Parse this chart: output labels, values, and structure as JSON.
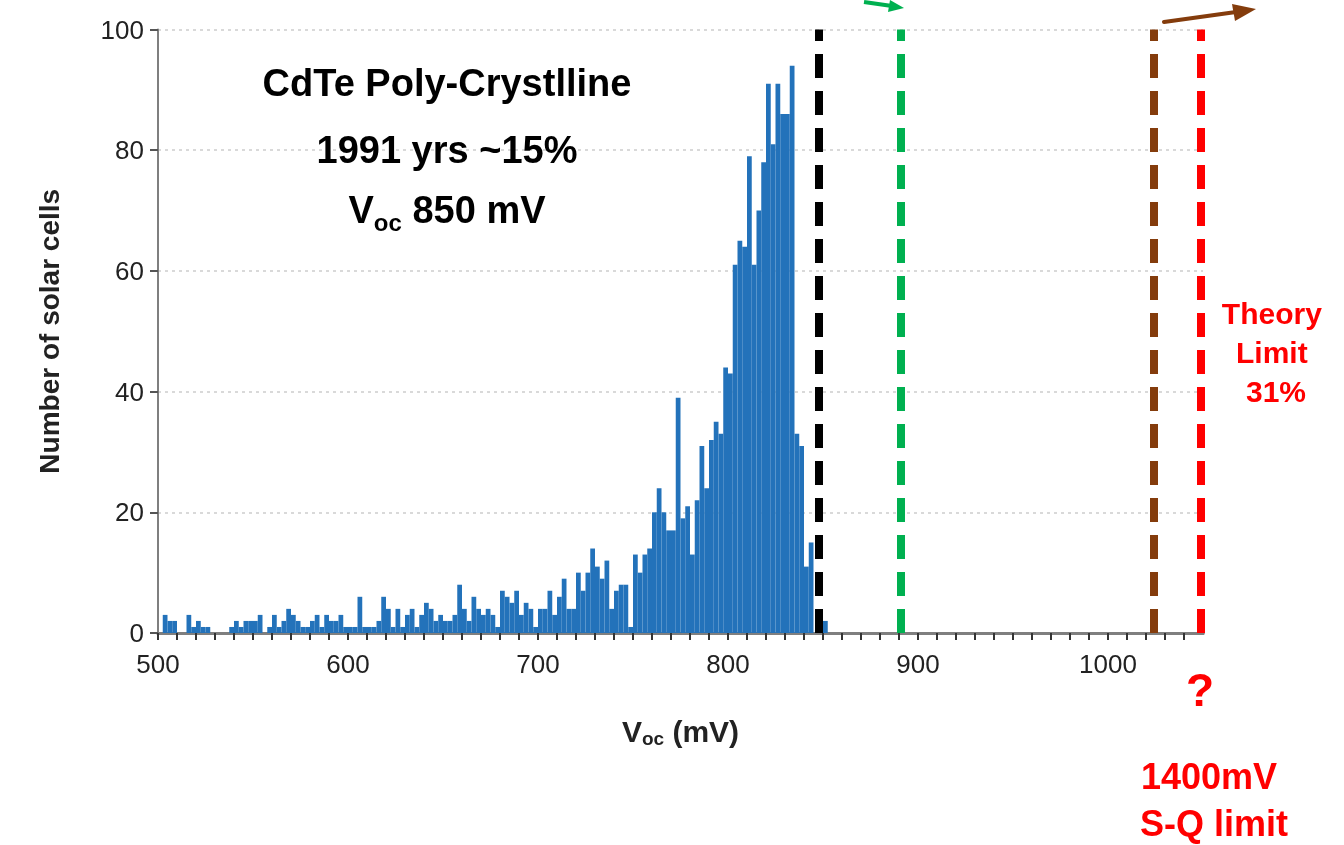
{
  "chart_data": {
    "type": "histogram",
    "xlabel": "V$_{oc}$ (mV)",
    "ylabel": "Number of solar cells",
    "bins": [
      500,
      502.5,
      505,
      507.5,
      510,
      512.5,
      515,
      517.5,
      520,
      522.5,
      525,
      527.5,
      530,
      532.5,
      535,
      537.5,
      540,
      542.5,
      545,
      547.5,
      550,
      552.5,
      555,
      557.5,
      560,
      562.5,
      565,
      567.5,
      570,
      572.5,
      575,
      577.5,
      580,
      582.5,
      585,
      587.5,
      590,
      592.5,
      595,
      597.5,
      600,
      602.5,
      605,
      607.5,
      610,
      612.5,
      615,
      617.5,
      620,
      622.5,
      625,
      627.5,
      630,
      632.5,
      635,
      637.5,
      640,
      642.5,
      645,
      647.5,
      650,
      652.5,
      655,
      657.5,
      660,
      662.5,
      665,
      667.5,
      670,
      672.5,
      675,
      677.5,
      680,
      682.5,
      685,
      687.5,
      690,
      692.5,
      695,
      697.5,
      700,
      702.5,
      705,
      707.5,
      710,
      712.5,
      715,
      717.5,
      720,
      722.5,
      725,
      727.5,
      730,
      732.5,
      735,
      737.5,
      740,
      742.5,
      745,
      747.5,
      750,
      752.5,
      755,
      757.5,
      760,
      762.5,
      765,
      767.5,
      770,
      772.5,
      775,
      777.5,
      780,
      782.5,
      785,
      787.5,
      790,
      792.5,
      795,
      797.5,
      800,
      802.5,
      805,
      807.5,
      810,
      812.5,
      815,
      817.5,
      820,
      822.5,
      825,
      827.5,
      830,
      832.5,
      835,
      837.5,
      840,
      842.5,
      845,
      847.5,
      850,
      852.5
    ],
    "values": [
      0,
      3,
      2,
      2,
      0,
      0,
      3,
      1,
      2,
      1,
      1,
      0,
      0,
      0,
      0,
      1,
      2,
      1,
      2,
      2,
      2,
      3,
      0,
      1,
      3,
      1,
      2,
      4,
      3,
      2,
      1,
      1,
      2,
      3,
      1,
      3,
      2,
      2,
      3,
      1,
      1,
      1,
      6,
      1,
      1,
      1,
      2,
      6,
      4,
      1,
      4,
      1,
      3,
      4,
      1,
      3,
      5,
      4,
      2,
      3,
      2,
      2,
      3,
      8,
      4,
      2,
      6,
      4,
      3,
      4,
      3,
      1,
      7,
      6,
      5,
      7,
      3,
      5,
      4,
      1,
      4,
      4,
      7,
      3,
      6,
      9,
      4,
      4,
      10,
      7,
      10,
      14,
      11,
      9,
      12,
      4,
      7,
      8,
      8,
      1,
      13,
      10,
      13,
      14,
      20,
      24,
      20,
      17,
      17,
      39,
      19,
      21,
      13,
      22,
      31,
      24,
      32,
      35,
      33,
      44,
      43,
      61,
      65,
      64,
      79,
      61,
      70,
      78,
      91,
      81,
      91,
      86,
      86,
      94,
      33,
      31,
      11,
      15,
      null,
      null,
      2
    ],
    "color": "#2372ba",
    "xlim": [
      500,
      1050
    ],
    "xticks": [
      500,
      {
        "value": 510,
        "label": null
      },
      {
        "value": 520,
        "label": null
      },
      {
        "value": 530,
        "label": null
      },
      {
        "value": 540,
        "label": null
      },
      {
        "value": 550,
        "label": null
      },
      {
        "value": 560,
        "label": null
      },
      {
        "value": 570,
        "label": null
      },
      {
        "value": 580,
        "label": null
      },
      {
        "value": 590,
        "label": null
      },
      600,
      {
        "value": 610,
        "label": null
      },
      {
        "value": 620,
        "label": null
      },
      {
        "value": 630,
        "label": null
      },
      {
        "value": 640,
        "label": null
      },
      {
        "value": 650,
        "label": null
      },
      {
        "value": 660,
        "label": null
      },
      {
        "value": 670,
        "label": null
      },
      {
        "value": 680,
        "label": null
      },
      {
        "value": 690,
        "label": null
      },
      700,
      {
        "value": 710,
        "label": null
      },
      {
        "value": 720,
        "label": null
      },
      {
        "value": 730,
        "label": null
      },
      {
        "value": 740,
        "label": null
      },
      {
        "value": 750,
        "label": null
      },
      {
        "value": 760,
        "label": null
      },
      {
        "value": 770,
        "label": null
      },
      {
        "value": 780,
        "label": null
      },
      {
        "value": 790,
        "label": null
      },
      800,
      {
        "value": 810,
        "label": null
      },
      {
        "value": 820,
        "label": null
      },
      {
        "value": 830,
        "label": null
      },
      {
        "value": 840,
        "label": null
      },
      {
        "value": 850,
        "label": null
      },
      {
        "value": 860,
        "label": null
      },
      {
        "value": 870,
        "label": null
      },
      {
        "value": 880,
        "label": null
      },
      {
        "value": 890,
        "label": null
      },
      900,
      {
        "value": 910,
        "label": null
      },
      {
        "value": 920,
        "label": null
      },
      {
        "value": 930,
        "label": null
      },
      {
        "value": 940,
        "label": null
      },
      {
        "value": 950,
        "label": null
      },
      {
        "value": 960,
        "label": null
      },
      {
        "value": 970,
        "label": null
      },
      {
        "value": 980,
        "label": null
      },
      {
        "value": 990,
        "label": null
      },
      1000,
      {
        "value": 1010,
        "label": null
      },
      {
        "value": 1020,
        "label": null
      },
      {
        "value": 1030,
        "label": null
      },
      {
        "value": 1040,
        "label": null
      }
    ],
    "ylim": [
      0,
      100
    ],
    "yticks": [
      0,
      20,
      40,
      60,
      80,
      100
    ],
    "grid": "y",
    "ref_lines": [
      {
        "axis": "x",
        "value": 848,
        "color": "#000000",
        "line_style": "dashed"
      },
      {
        "axis": "x",
        "value": 891,
        "color": "#00b050",
        "line_style": "dashed"
      },
      {
        "axis": "x",
        "value": 1024,
        "color": "#843c0c",
        "line_style": "dashed"
      },
      {
        "axis": "x",
        "value": 1049,
        "color": "#ff0000",
        "line_style": "dashed"
      }
    ],
    "annotations": [
      "CdTe Poly-Crystlline",
      "1991 yrs ~15%",
      "V$_{oc}$ 850 mV",
      "Theory Limit 31%",
      "?",
      "1400mV S-Q limit"
    ]
  }
}
